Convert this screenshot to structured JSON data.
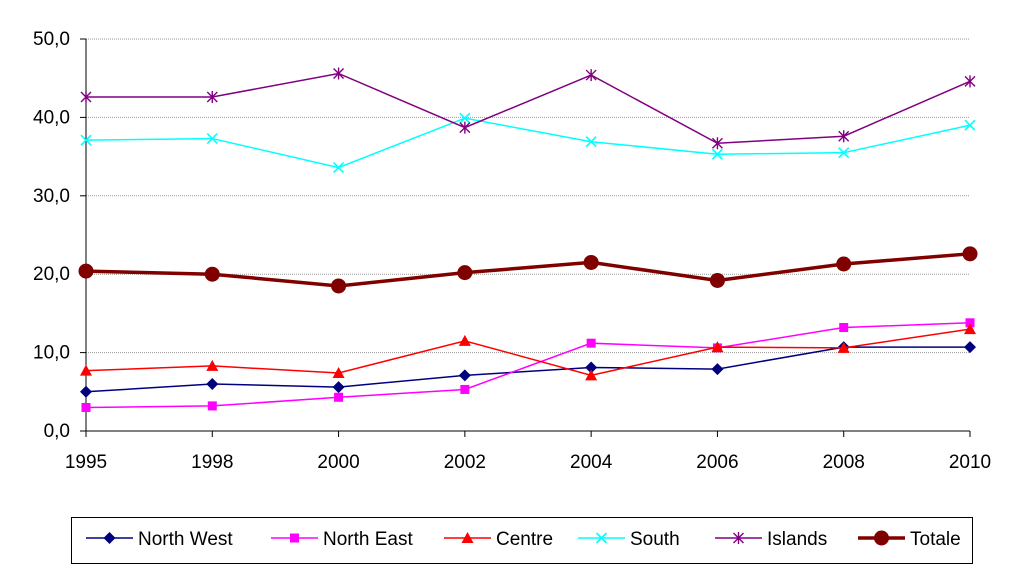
{
  "chart_data": {
    "type": "line",
    "title": "",
    "xlabel": "",
    "ylabel": "",
    "categories": [
      "1995",
      "1998",
      "2000",
      "2002",
      "2004",
      "2006",
      "2008",
      "2010"
    ],
    "ylim": [
      0,
      50
    ],
    "yticks": [
      0,
      10,
      20,
      30,
      40,
      50
    ],
    "ytick_labels": [
      "0,0",
      "10,0",
      "20,0",
      "30,0",
      "40,0",
      "50,0"
    ],
    "grid": true,
    "legend_position": "bottom",
    "series": [
      {
        "name": "North West",
        "color": "#00007F",
        "marker": "diamond",
        "values": [
          5.0,
          6.0,
          5.6,
          7.1,
          8.1,
          7.9,
          10.7,
          10.7
        ]
      },
      {
        "name": "North East",
        "color": "#FF00FF",
        "marker": "square",
        "values": [
          3.0,
          3.2,
          4.3,
          5.3,
          11.2,
          10.6,
          13.2,
          13.8
        ]
      },
      {
        "name": "Centre",
        "color": "#FF0000",
        "marker": "triangle",
        "values": [
          7.7,
          8.3,
          7.4,
          11.5,
          7.1,
          10.7,
          10.6,
          13.0
        ]
      },
      {
        "name": "South",
        "color": "#00FFFF",
        "marker": "x",
        "values": [
          37.1,
          37.3,
          33.6,
          39.9,
          36.9,
          35.3,
          35.5,
          39.0
        ]
      },
      {
        "name": "Islands",
        "color": "#800080",
        "marker": "star",
        "values": [
          42.6,
          42.6,
          45.6,
          38.7,
          45.4,
          36.7,
          37.6,
          44.6
        ]
      },
      {
        "name": "Totale",
        "color": "#800000",
        "marker": "circle",
        "values": [
          20.4,
          20.0,
          18.5,
          20.2,
          21.5,
          19.2,
          21.3,
          22.6
        ]
      }
    ]
  }
}
